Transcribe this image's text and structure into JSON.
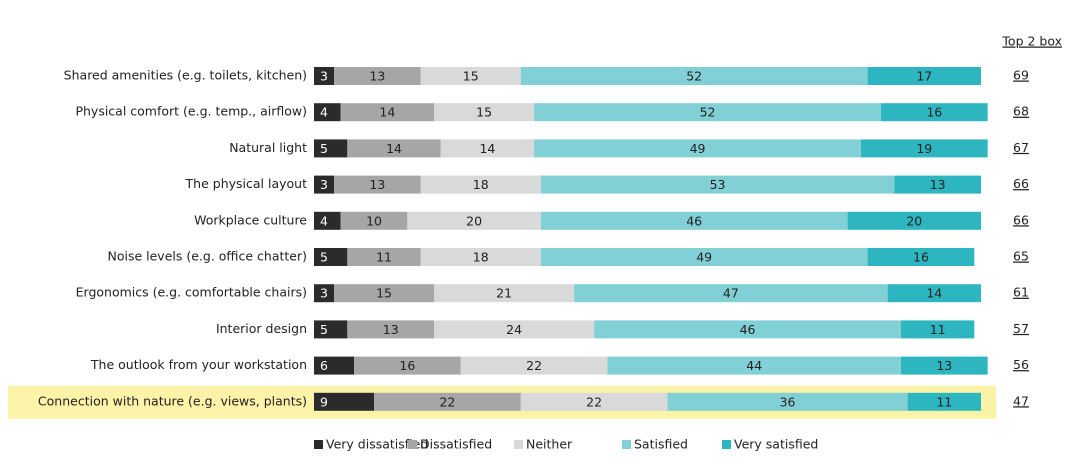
{
  "chart_data": {
    "type": "stacked-bar-horizontal",
    "categories": [
      "Shared amenities (e.g. toilets, kitchen)",
      "Physical comfort (e.g. temp., airflow)",
      "Natural light",
      "The physical layout",
      "Workplace culture",
      "Noise levels (e.g. office chatter)",
      "Ergonomics (e.g. comfortable chairs)",
      "Interior design",
      "The outlook from your workstation",
      "Connection with nature (e.g. views, plants)"
    ],
    "series": [
      {
        "name": "Very dissatisfied",
        "color": "#2b2b2b",
        "values": [
          3,
          4,
          5,
          3,
          4,
          5,
          3,
          5,
          6,
          9
        ]
      },
      {
        "name": "Dissatisfied",
        "color": "#a6a6a6",
        "values": [
          13,
          14,
          14,
          13,
          10,
          11,
          15,
          13,
          16,
          22
        ]
      },
      {
        "name": "Neither",
        "color": "#d9d9d9",
        "values": [
          15,
          15,
          14,
          18,
          20,
          18,
          21,
          24,
          22,
          22
        ]
      },
      {
        "name": "Satisfied",
        "color": "#80d0d6",
        "values": [
          52,
          52,
          49,
          53,
          46,
          49,
          47,
          46,
          44,
          36
        ]
      },
      {
        "name": "Very satisfied",
        "color": "#2db6bf",
        "values": [
          17,
          16,
          19,
          13,
          20,
          16,
          14,
          11,
          13,
          11
        ]
      }
    ],
    "xlim": [
      0,
      100
    ],
    "highlight": 9,
    "top2box": {
      "title": "Top 2 box",
      "values": [
        69,
        68,
        67,
        66,
        66,
        65,
        61,
        57,
        56,
        47
      ]
    }
  }
}
